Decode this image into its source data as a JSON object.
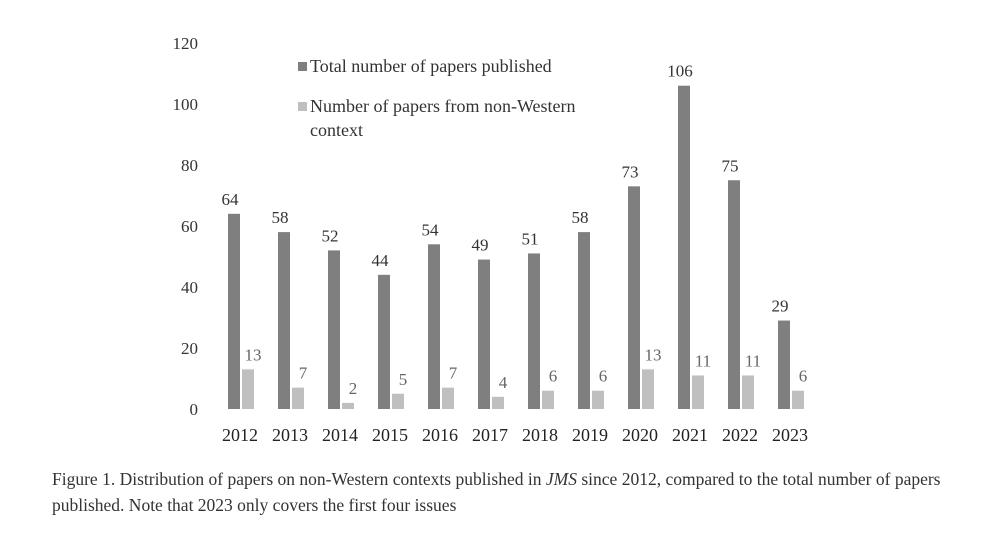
{
  "chart_data": {
    "type": "bar",
    "title": "",
    "xlabel": "",
    "ylabel": "",
    "ylim": [
      0,
      120
    ],
    "yticks": [
      0,
      20,
      40,
      60,
      80,
      100,
      120
    ],
    "grid": false,
    "legend_placement": "top-left",
    "categories": [
      "2012",
      "2013",
      "2014",
      "2015",
      "2016",
      "2017",
      "2018",
      "2019",
      "2020",
      "2021",
      "2022",
      "2023"
    ],
    "series": [
      {
        "name": "Total number of papers published",
        "color": "#7f7f7f",
        "values": [
          64,
          58,
          52,
          44,
          54,
          49,
          51,
          58,
          73,
          106,
          75,
          29
        ],
        "labels": [
          "64",
          "58",
          "52",
          "44",
          "54",
          "49",
          "51",
          "58",
          "73",
          "106",
          "75",
          "29"
        ]
      },
      {
        "name": "Number of papers from non-Western context",
        "color": "#bfbfbf",
        "values": [
          13,
          7,
          2,
          5,
          7,
          4,
          6,
          6,
          13,
          11,
          11,
          6
        ],
        "labels": [
          "13",
          "7",
          "2",
          "5",
          "7",
          "4",
          "6",
          "6",
          "13",
          "11",
          "11",
          "6"
        ]
      }
    ],
    "legend_lines": [
      [
        "Total number of papers published"
      ],
      [
        "Number of papers from non-Western",
        "context"
      ]
    ]
  },
  "caption": {
    "before": "Figure 1. Distribution of papers on non-Western contexts published in ",
    "journal": "JMS",
    "after": " since 2012, compared to the total number of papers published. Note that 2023 only covers the first four issues"
  }
}
